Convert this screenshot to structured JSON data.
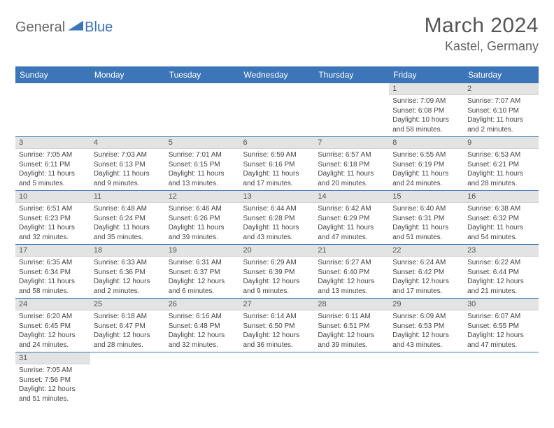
{
  "logo": {
    "part1": "General",
    "part2": "Blue"
  },
  "title": "March 2024",
  "location": "Kastel, Germany",
  "colors": {
    "header_bg": "#3c75b8",
    "header_fg": "#ffffff",
    "daynum_bg": "#e3e3e3",
    "row_divider": "#3c75b8",
    "body_text": "#444444",
    "page_bg": "#ffffff"
  },
  "weekdays": [
    "Sunday",
    "Monday",
    "Tuesday",
    "Wednesday",
    "Thursday",
    "Friday",
    "Saturday"
  ],
  "weeks": [
    [
      null,
      null,
      null,
      null,
      null,
      {
        "d": "1",
        "sr": "Sunrise: 7:09 AM",
        "ss": "Sunset: 6:08 PM",
        "dl1": "Daylight: 10 hours",
        "dl2": "and 58 minutes."
      },
      {
        "d": "2",
        "sr": "Sunrise: 7:07 AM",
        "ss": "Sunset: 6:10 PM",
        "dl1": "Daylight: 11 hours",
        "dl2": "and 2 minutes."
      }
    ],
    [
      {
        "d": "3",
        "sr": "Sunrise: 7:05 AM",
        "ss": "Sunset: 6:11 PM",
        "dl1": "Daylight: 11 hours",
        "dl2": "and 5 minutes."
      },
      {
        "d": "4",
        "sr": "Sunrise: 7:03 AM",
        "ss": "Sunset: 6:13 PM",
        "dl1": "Daylight: 11 hours",
        "dl2": "and 9 minutes."
      },
      {
        "d": "5",
        "sr": "Sunrise: 7:01 AM",
        "ss": "Sunset: 6:15 PM",
        "dl1": "Daylight: 11 hours",
        "dl2": "and 13 minutes."
      },
      {
        "d": "6",
        "sr": "Sunrise: 6:59 AM",
        "ss": "Sunset: 6:16 PM",
        "dl1": "Daylight: 11 hours",
        "dl2": "and 17 minutes."
      },
      {
        "d": "7",
        "sr": "Sunrise: 6:57 AM",
        "ss": "Sunset: 6:18 PM",
        "dl1": "Daylight: 11 hours",
        "dl2": "and 20 minutes."
      },
      {
        "d": "8",
        "sr": "Sunrise: 6:55 AM",
        "ss": "Sunset: 6:19 PM",
        "dl1": "Daylight: 11 hours",
        "dl2": "and 24 minutes."
      },
      {
        "d": "9",
        "sr": "Sunrise: 6:53 AM",
        "ss": "Sunset: 6:21 PM",
        "dl1": "Daylight: 11 hours",
        "dl2": "and 28 minutes."
      }
    ],
    [
      {
        "d": "10",
        "sr": "Sunrise: 6:51 AM",
        "ss": "Sunset: 6:23 PM",
        "dl1": "Daylight: 11 hours",
        "dl2": "and 32 minutes."
      },
      {
        "d": "11",
        "sr": "Sunrise: 6:48 AM",
        "ss": "Sunset: 6:24 PM",
        "dl1": "Daylight: 11 hours",
        "dl2": "and 35 minutes."
      },
      {
        "d": "12",
        "sr": "Sunrise: 6:46 AM",
        "ss": "Sunset: 6:26 PM",
        "dl1": "Daylight: 11 hours",
        "dl2": "and 39 minutes."
      },
      {
        "d": "13",
        "sr": "Sunrise: 6:44 AM",
        "ss": "Sunset: 6:28 PM",
        "dl1": "Daylight: 11 hours",
        "dl2": "and 43 minutes."
      },
      {
        "d": "14",
        "sr": "Sunrise: 6:42 AM",
        "ss": "Sunset: 6:29 PM",
        "dl1": "Daylight: 11 hours",
        "dl2": "and 47 minutes."
      },
      {
        "d": "15",
        "sr": "Sunrise: 6:40 AM",
        "ss": "Sunset: 6:31 PM",
        "dl1": "Daylight: 11 hours",
        "dl2": "and 51 minutes."
      },
      {
        "d": "16",
        "sr": "Sunrise: 6:38 AM",
        "ss": "Sunset: 6:32 PM",
        "dl1": "Daylight: 11 hours",
        "dl2": "and 54 minutes."
      }
    ],
    [
      {
        "d": "17",
        "sr": "Sunrise: 6:35 AM",
        "ss": "Sunset: 6:34 PM",
        "dl1": "Daylight: 11 hours",
        "dl2": "and 58 minutes."
      },
      {
        "d": "18",
        "sr": "Sunrise: 6:33 AM",
        "ss": "Sunset: 6:36 PM",
        "dl1": "Daylight: 12 hours",
        "dl2": "and 2 minutes."
      },
      {
        "d": "19",
        "sr": "Sunrise: 6:31 AM",
        "ss": "Sunset: 6:37 PM",
        "dl1": "Daylight: 12 hours",
        "dl2": "and 6 minutes."
      },
      {
        "d": "20",
        "sr": "Sunrise: 6:29 AM",
        "ss": "Sunset: 6:39 PM",
        "dl1": "Daylight: 12 hours",
        "dl2": "and 9 minutes."
      },
      {
        "d": "21",
        "sr": "Sunrise: 6:27 AM",
        "ss": "Sunset: 6:40 PM",
        "dl1": "Daylight: 12 hours",
        "dl2": "and 13 minutes."
      },
      {
        "d": "22",
        "sr": "Sunrise: 6:24 AM",
        "ss": "Sunset: 6:42 PM",
        "dl1": "Daylight: 12 hours",
        "dl2": "and 17 minutes."
      },
      {
        "d": "23",
        "sr": "Sunrise: 6:22 AM",
        "ss": "Sunset: 6:44 PM",
        "dl1": "Daylight: 12 hours",
        "dl2": "and 21 minutes."
      }
    ],
    [
      {
        "d": "24",
        "sr": "Sunrise: 6:20 AM",
        "ss": "Sunset: 6:45 PM",
        "dl1": "Daylight: 12 hours",
        "dl2": "and 24 minutes."
      },
      {
        "d": "25",
        "sr": "Sunrise: 6:18 AM",
        "ss": "Sunset: 6:47 PM",
        "dl1": "Daylight: 12 hours",
        "dl2": "and 28 minutes."
      },
      {
        "d": "26",
        "sr": "Sunrise: 6:16 AM",
        "ss": "Sunset: 6:48 PM",
        "dl1": "Daylight: 12 hours",
        "dl2": "and 32 minutes."
      },
      {
        "d": "27",
        "sr": "Sunrise: 6:14 AM",
        "ss": "Sunset: 6:50 PM",
        "dl1": "Daylight: 12 hours",
        "dl2": "and 36 minutes."
      },
      {
        "d": "28",
        "sr": "Sunrise: 6:11 AM",
        "ss": "Sunset: 6:51 PM",
        "dl1": "Daylight: 12 hours",
        "dl2": "and 39 minutes."
      },
      {
        "d": "29",
        "sr": "Sunrise: 6:09 AM",
        "ss": "Sunset: 6:53 PM",
        "dl1": "Daylight: 12 hours",
        "dl2": "and 43 minutes."
      },
      {
        "d": "30",
        "sr": "Sunrise: 6:07 AM",
        "ss": "Sunset: 6:55 PM",
        "dl1": "Daylight: 12 hours",
        "dl2": "and 47 minutes."
      }
    ],
    [
      {
        "d": "31",
        "sr": "Sunrise: 7:05 AM",
        "ss": "Sunset: 7:56 PM",
        "dl1": "Daylight: 12 hours",
        "dl2": "and 51 minutes."
      },
      null,
      null,
      null,
      null,
      null,
      null
    ]
  ]
}
